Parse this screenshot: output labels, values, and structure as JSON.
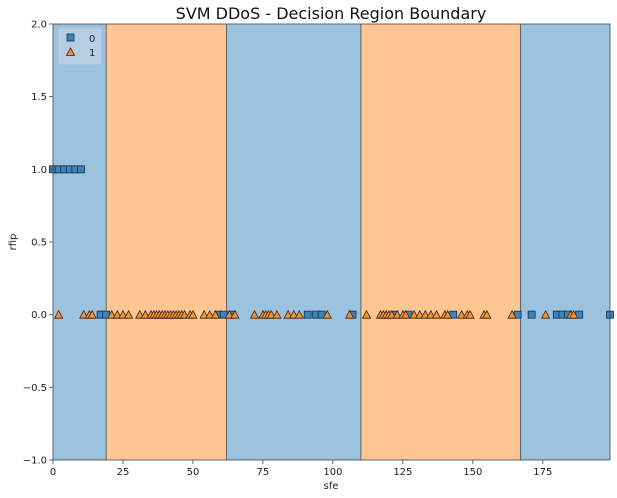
{
  "chart_data": {
    "type": "scatter",
    "title": "SVM DDoS - Decision Region Boundary",
    "xlabel": "sfe",
    "ylabel": "rfip",
    "xlim": [
      0,
      199
    ],
    "ylim": [
      -1.0,
      2.0
    ],
    "x_ticks": [
      0,
      25,
      50,
      75,
      100,
      125,
      150,
      175
    ],
    "x_tick_labels": [
      "0",
      "25",
      "50",
      "75",
      "100",
      "125",
      "150",
      "175"
    ],
    "y_ticks": [
      -1.0,
      -0.5,
      0.0,
      0.5,
      1.0,
      1.5,
      2.0
    ],
    "y_tick_labels": [
      "−1.0",
      "−0.5",
      "0.0",
      "0.5",
      "1.0",
      "1.5",
      "2.0"
    ],
    "grid": false,
    "legend_position": "top-left",
    "regions": [
      {
        "class": "0",
        "x_start": 0,
        "x_end": 19,
        "color": "#9bc2de"
      },
      {
        "class": "1",
        "x_start": 19,
        "x_end": 62,
        "color": "#ffc593"
      },
      {
        "class": "0",
        "x_start": 62,
        "x_end": 110,
        "color": "#9bc2de"
      },
      {
        "class": "1",
        "x_start": 110,
        "x_end": 167,
        "color": "#ffc593"
      },
      {
        "class": "0",
        "x_start": 167,
        "x_end": 199,
        "color": "#9bc2de"
      }
    ],
    "series": [
      {
        "name": "0",
        "marker": "square",
        "color": "#3a84c0",
        "points": [
          [
            0,
            1
          ],
          [
            2,
            1
          ],
          [
            4,
            1
          ],
          [
            6,
            1
          ],
          [
            8,
            1
          ],
          [
            10,
            1
          ],
          [
            17,
            0
          ],
          [
            19,
            0
          ],
          [
            59,
            0
          ],
          [
            61,
            0
          ],
          [
            64,
            0
          ],
          [
            91,
            0
          ],
          [
            94,
            0
          ],
          [
            96,
            0
          ],
          [
            107,
            0
          ],
          [
            122,
            0
          ],
          [
            127,
            0
          ],
          [
            143,
            0
          ],
          [
            166,
            0
          ],
          [
            171,
            0
          ],
          [
            180,
            0
          ],
          [
            182,
            0
          ],
          [
            184,
            0
          ],
          [
            188,
            0
          ],
          [
            199,
            0
          ]
        ]
      },
      {
        "name": "1",
        "marker": "triangle",
        "color": "#f59234",
        "points": [
          [
            2,
            0
          ],
          [
            11,
            0
          ],
          [
            13,
            0
          ],
          [
            14,
            0
          ],
          [
            21,
            0
          ],
          [
            23,
            0
          ],
          [
            25,
            0
          ],
          [
            27,
            0
          ],
          [
            31,
            0
          ],
          [
            33,
            0
          ],
          [
            35,
            0
          ],
          [
            36,
            0
          ],
          [
            37,
            0
          ],
          [
            38,
            0
          ],
          [
            39,
            0
          ],
          [
            40,
            0
          ],
          [
            41,
            0
          ],
          [
            42,
            0
          ],
          [
            43,
            0
          ],
          [
            44,
            0
          ],
          [
            45,
            0
          ],
          [
            46,
            0
          ],
          [
            47,
            0
          ],
          [
            49,
            0
          ],
          [
            50,
            0
          ],
          [
            54,
            0
          ],
          [
            56,
            0
          ],
          [
            58,
            0
          ],
          [
            63,
            0
          ],
          [
            65,
            0
          ],
          [
            72,
            0
          ],
          [
            75,
            0
          ],
          [
            76,
            0
          ],
          [
            77,
            0
          ],
          [
            78,
            0
          ],
          [
            80,
            0
          ],
          [
            84,
            0
          ],
          [
            86,
            0
          ],
          [
            88,
            0
          ],
          [
            98,
            0
          ],
          [
            106,
            0
          ],
          [
            112,
            0
          ],
          [
            117,
            0
          ],
          [
            118,
            0
          ],
          [
            119,
            0
          ],
          [
            120,
            0
          ],
          [
            121,
            0
          ],
          [
            123,
            0
          ],
          [
            125,
            0
          ],
          [
            126,
            0
          ],
          [
            129,
            0
          ],
          [
            131,
            0
          ],
          [
            133,
            0
          ],
          [
            135,
            0
          ],
          [
            137,
            0
          ],
          [
            140,
            0
          ],
          [
            141,
            0
          ],
          [
            146,
            0
          ],
          [
            148,
            0
          ],
          [
            149,
            0
          ],
          [
            154,
            0
          ],
          [
            155,
            0
          ],
          [
            164,
            0
          ],
          [
            176,
            0
          ],
          [
            185,
            0
          ],
          [
            186,
            0
          ]
        ]
      }
    ]
  }
}
